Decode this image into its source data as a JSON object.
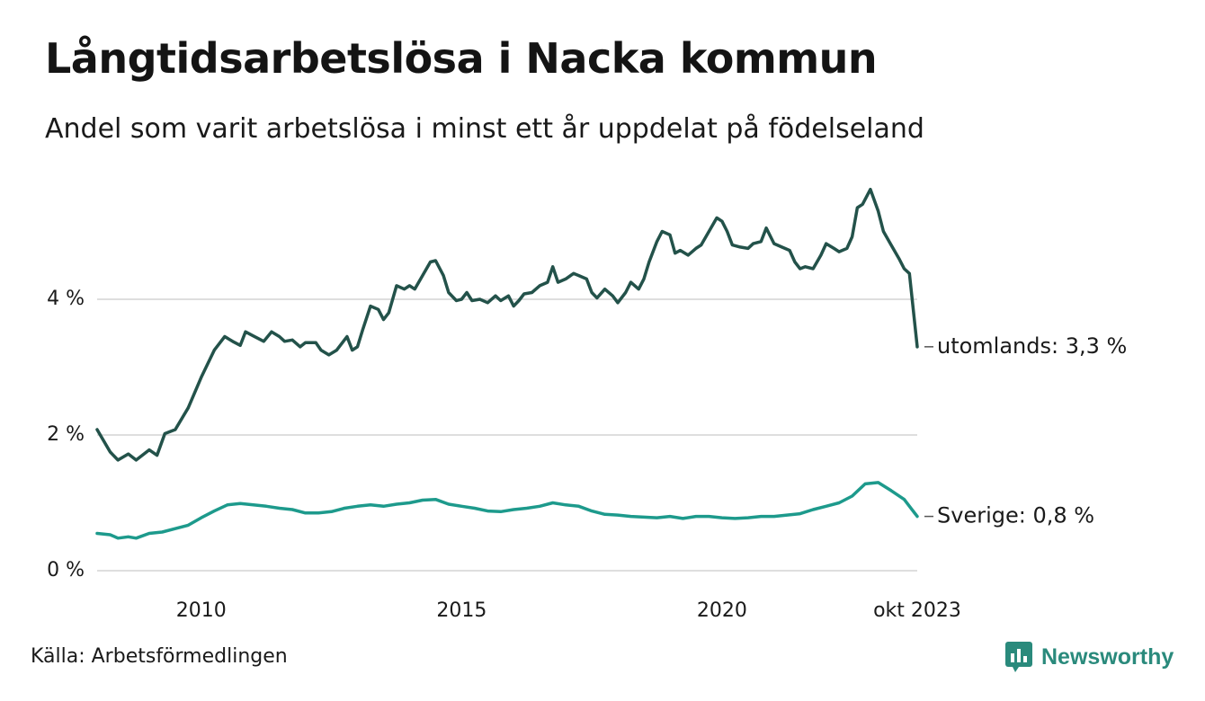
{
  "title": "Långtidsarbetslösa i Nacka kommun",
  "subtitle": "Andel som varit arbetslösa i minst ett år uppdelat på födelseland",
  "source": "Källa: Arbetsförmedlingen",
  "brand": "Newsworthy",
  "colors": {
    "utomlands": "#23524a",
    "sverige": "#1d9a8c",
    "grid": "#dedede",
    "brand": "#2a8a7c"
  },
  "chart_data": {
    "type": "line",
    "title": "Långtidsarbetslösa i Nacka kommun",
    "ylim": [
      0,
      5.6
    ],
    "xlim": [
      2008.0,
      2023.75
    ],
    "y_ticks": [
      {
        "value": 0,
        "label": "0 %"
      },
      {
        "value": 2,
        "label": "2 %"
      },
      {
        "value": 4,
        "label": "4 %"
      }
    ],
    "x_ticks": [
      {
        "value": 2010,
        "label": "2010"
      },
      {
        "value": 2015,
        "label": "2015"
      },
      {
        "value": 2020,
        "label": "2020"
      },
      {
        "value": 2023.75,
        "label": "okt 2023"
      }
    ],
    "grid": true,
    "series": [
      {
        "name": "utomlands",
        "label": "utomlands: 3,3 %",
        "points": [
          [
            2008.0,
            2.08
          ],
          [
            2008.25,
            1.75
          ],
          [
            2008.4,
            1.63
          ],
          [
            2008.6,
            1.72
          ],
          [
            2008.75,
            1.63
          ],
          [
            2009.0,
            1.78
          ],
          [
            2009.15,
            1.7
          ],
          [
            2009.3,
            2.02
          ],
          [
            2009.5,
            2.08
          ],
          [
            2009.75,
            2.4
          ],
          [
            2010.0,
            2.85
          ],
          [
            2010.25,
            3.25
          ],
          [
            2010.45,
            3.45
          ],
          [
            2010.6,
            3.38
          ],
          [
            2010.75,
            3.32
          ],
          [
            2010.85,
            3.52
          ],
          [
            2011.0,
            3.46
          ],
          [
            2011.2,
            3.38
          ],
          [
            2011.35,
            3.52
          ],
          [
            2011.5,
            3.45
          ],
          [
            2011.6,
            3.38
          ],
          [
            2011.75,
            3.4
          ],
          [
            2011.9,
            3.3
          ],
          [
            2012.0,
            3.36
          ],
          [
            2012.2,
            3.36
          ],
          [
            2012.3,
            3.25
          ],
          [
            2012.45,
            3.18
          ],
          [
            2012.6,
            3.25
          ],
          [
            2012.8,
            3.45
          ],
          [
            2012.9,
            3.25
          ],
          [
            2013.0,
            3.3
          ],
          [
            2013.1,
            3.55
          ],
          [
            2013.25,
            3.9
          ],
          [
            2013.4,
            3.85
          ],
          [
            2013.5,
            3.7
          ],
          [
            2013.6,
            3.8
          ],
          [
            2013.75,
            4.2
          ],
          [
            2013.9,
            4.15
          ],
          [
            2014.0,
            4.2
          ],
          [
            2014.1,
            4.15
          ],
          [
            2014.25,
            4.35
          ],
          [
            2014.4,
            4.55
          ],
          [
            2014.5,
            4.57
          ],
          [
            2014.65,
            4.35
          ],
          [
            2014.75,
            4.1
          ],
          [
            2014.9,
            3.98
          ],
          [
            2015.0,
            4.0
          ],
          [
            2015.1,
            4.1
          ],
          [
            2015.2,
            3.98
          ],
          [
            2015.35,
            4.0
          ],
          [
            2015.5,
            3.95
          ],
          [
            2015.65,
            4.05
          ],
          [
            2015.75,
            3.98
          ],
          [
            2015.9,
            4.05
          ],
          [
            2016.0,
            3.9
          ],
          [
            2016.1,
            3.98
          ],
          [
            2016.2,
            4.08
          ],
          [
            2016.35,
            4.1
          ],
          [
            2016.5,
            4.2
          ],
          [
            2016.65,
            4.25
          ],
          [
            2016.75,
            4.48
          ],
          [
            2016.85,
            4.25
          ],
          [
            2017.0,
            4.3
          ],
          [
            2017.15,
            4.38
          ],
          [
            2017.25,
            4.35
          ],
          [
            2017.4,
            4.3
          ],
          [
            2017.5,
            4.1
          ],
          [
            2017.6,
            4.02
          ],
          [
            2017.75,
            4.15
          ],
          [
            2017.9,
            4.05
          ],
          [
            2018.0,
            3.95
          ],
          [
            2018.15,
            4.1
          ],
          [
            2018.25,
            4.25
          ],
          [
            2018.4,
            4.15
          ],
          [
            2018.5,
            4.3
          ],
          [
            2018.6,
            4.55
          ],
          [
            2018.75,
            4.85
          ],
          [
            2018.85,
            5.0
          ],
          [
            2019.0,
            4.95
          ],
          [
            2019.1,
            4.68
          ],
          [
            2019.2,
            4.72
          ],
          [
            2019.35,
            4.65
          ],
          [
            2019.5,
            4.75
          ],
          [
            2019.6,
            4.8
          ],
          [
            2019.75,
            5.0
          ],
          [
            2019.9,
            5.2
          ],
          [
            2020.0,
            5.15
          ],
          [
            2020.1,
            5.0
          ],
          [
            2020.2,
            4.8
          ],
          [
            2020.35,
            4.77
          ],
          [
            2020.5,
            4.75
          ],
          [
            2020.6,
            4.82
          ],
          [
            2020.75,
            4.85
          ],
          [
            2020.85,
            5.05
          ],
          [
            2021.0,
            4.82
          ],
          [
            2021.15,
            4.77
          ],
          [
            2021.3,
            4.72
          ],
          [
            2021.4,
            4.55
          ],
          [
            2021.5,
            4.45
          ],
          [
            2021.6,
            4.48
          ],
          [
            2021.75,
            4.45
          ],
          [
            2021.9,
            4.65
          ],
          [
            2022.0,
            4.82
          ],
          [
            2022.15,
            4.75
          ],
          [
            2022.25,
            4.7
          ],
          [
            2022.4,
            4.75
          ],
          [
            2022.5,
            4.92
          ],
          [
            2022.6,
            5.35
          ],
          [
            2022.7,
            5.4
          ],
          [
            2022.85,
            5.62
          ],
          [
            2023.0,
            5.3
          ],
          [
            2023.1,
            5.0
          ],
          [
            2023.25,
            4.8
          ],
          [
            2023.4,
            4.6
          ],
          [
            2023.5,
            4.45
          ],
          [
            2023.6,
            4.38
          ],
          [
            2023.75,
            3.3
          ]
        ]
      },
      {
        "name": "sverige",
        "label": "Sverige: 0,8 %",
        "points": [
          [
            2008.0,
            0.55
          ],
          [
            2008.25,
            0.53
          ],
          [
            2008.4,
            0.48
          ],
          [
            2008.6,
            0.5
          ],
          [
            2008.75,
            0.48
          ],
          [
            2009.0,
            0.55
          ],
          [
            2009.25,
            0.57
          ],
          [
            2009.5,
            0.62
          ],
          [
            2009.75,
            0.67
          ],
          [
            2010.0,
            0.78
          ],
          [
            2010.25,
            0.88
          ],
          [
            2010.5,
            0.97
          ],
          [
            2010.75,
            0.99
          ],
          [
            2011.0,
            0.97
          ],
          [
            2011.25,
            0.95
          ],
          [
            2011.5,
            0.92
          ],
          [
            2011.75,
            0.9
          ],
          [
            2012.0,
            0.85
          ],
          [
            2012.25,
            0.85
          ],
          [
            2012.5,
            0.87
          ],
          [
            2012.75,
            0.92
          ],
          [
            2013.0,
            0.95
          ],
          [
            2013.25,
            0.97
          ],
          [
            2013.5,
            0.95
          ],
          [
            2013.75,
            0.98
          ],
          [
            2014.0,
            1.0
          ],
          [
            2014.25,
            1.04
          ],
          [
            2014.5,
            1.05
          ],
          [
            2014.75,
            0.98
          ],
          [
            2015.0,
            0.95
          ],
          [
            2015.25,
            0.92
          ],
          [
            2015.5,
            0.88
          ],
          [
            2015.75,
            0.87
          ],
          [
            2016.0,
            0.9
          ],
          [
            2016.25,
            0.92
          ],
          [
            2016.5,
            0.95
          ],
          [
            2016.75,
            1.0
          ],
          [
            2017.0,
            0.97
          ],
          [
            2017.25,
            0.95
          ],
          [
            2017.5,
            0.88
          ],
          [
            2017.75,
            0.83
          ],
          [
            2018.0,
            0.82
          ],
          [
            2018.25,
            0.8
          ],
          [
            2018.5,
            0.79
          ],
          [
            2018.75,
            0.78
          ],
          [
            2019.0,
            0.8
          ],
          [
            2019.25,
            0.77
          ],
          [
            2019.5,
            0.8
          ],
          [
            2019.75,
            0.8
          ],
          [
            2020.0,
            0.78
          ],
          [
            2020.25,
            0.77
          ],
          [
            2020.5,
            0.78
          ],
          [
            2020.75,
            0.8
          ],
          [
            2021.0,
            0.8
          ],
          [
            2021.25,
            0.82
          ],
          [
            2021.5,
            0.84
          ],
          [
            2021.75,
            0.9
          ],
          [
            2022.0,
            0.95
          ],
          [
            2022.25,
            1.0
          ],
          [
            2022.5,
            1.1
          ],
          [
            2022.75,
            1.28
          ],
          [
            2023.0,
            1.3
          ],
          [
            2023.25,
            1.18
          ],
          [
            2023.5,
            1.05
          ],
          [
            2023.75,
            0.8
          ]
        ]
      }
    ]
  }
}
